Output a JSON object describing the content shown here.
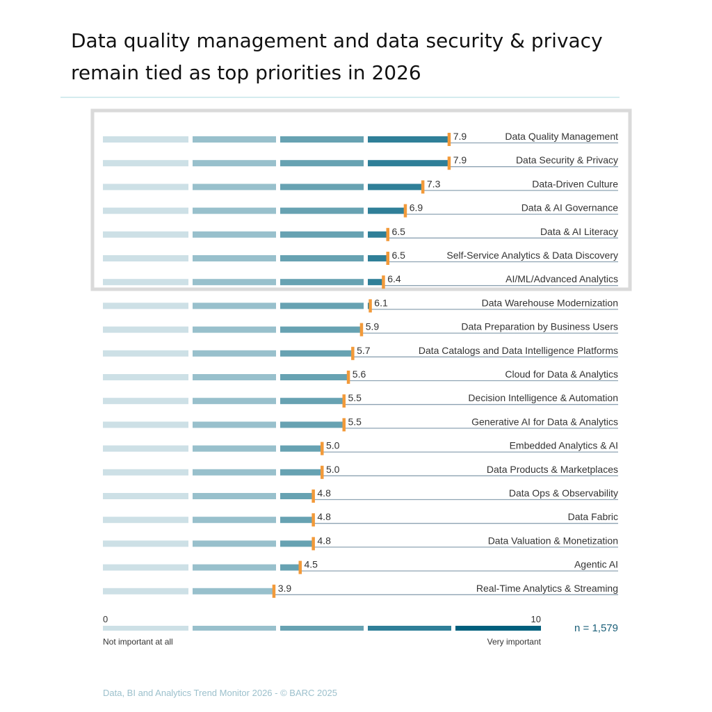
{
  "title": "Data quality management and data security & privacy remain tied as top priorities in 2026",
  "chart_data": {
    "type": "bar",
    "orientation": "horizontal",
    "categories": [
      "Data Quality Management",
      "Data Security & Privacy",
      "Data-Driven Culture",
      "Data & AI Governance",
      "Data & AI Literacy",
      "Self-Service Analytics & Data Discovery",
      "AI/ML/Advanced Analytics",
      "Data Warehouse Modernization",
      "Data Preparation by Business Users",
      "Data Catalogs and Data Intelligence Platforms",
      "Cloud for Data & Analytics",
      "Decision Intelligence & Automation",
      "Generative AI for Data & Analytics",
      "Embedded Analytics & AI",
      "Data Products & Marketplaces",
      "Data Ops & Observability",
      "Data Fabric",
      "Data Valuation & Monetization",
      "Agentic AI",
      "Real-Time Analytics & Streaming"
    ],
    "values": [
      7.9,
      7.9,
      7.3,
      6.9,
      6.5,
      6.5,
      6.4,
      6.1,
      5.9,
      5.7,
      5.6,
      5.5,
      5.5,
      5.0,
      5.0,
      4.8,
      4.8,
      4.8,
      4.5,
      3.9
    ],
    "value_labels": [
      "7.9",
      "7.9",
      "7.3",
      "6.9",
      "6.5",
      "6.5",
      "6.4",
      "6.1",
      "5.9",
      "5.7",
      "5.6",
      "5.5",
      "5.5",
      "5.0",
      "5.0",
      "4.8",
      "4.8",
      "4.8",
      "4.5",
      "3.9"
    ],
    "xlim": [
      0,
      10
    ],
    "scale": {
      "min_label": "0",
      "max_label": "10",
      "min_caption": "Not important at all",
      "max_caption": "Very important"
    },
    "highlighted_top_n": 7,
    "sample_size": "n = 1,579",
    "grid": false,
    "colors": {
      "segments": [
        "#cde0e6",
        "#98c0cc",
        "#67a2b2",
        "#2f7f98",
        "#005f7d"
      ],
      "marker": "#f29a3a",
      "underline": "#8ea3b3",
      "highlight_border": "#dadada",
      "divider": "#a9dadd"
    }
  },
  "footer": "Data, BI and Analytics Trend Monitor 2026 - © BARC 2025"
}
